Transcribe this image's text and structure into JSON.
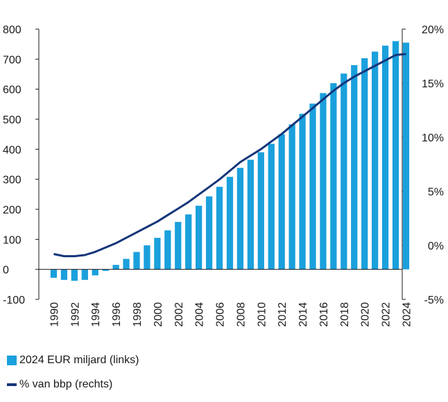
{
  "colors": {
    "bar": "#1aa0dc",
    "line": "#14357a",
    "axis": "#1a1a1a"
  },
  "chart_data": {
    "type": "bar+line",
    "title": "",
    "grid": false,
    "x": [
      1990,
      1991,
      1992,
      1993,
      1994,
      1995,
      1996,
      1997,
      1998,
      1999,
      2000,
      2001,
      2002,
      2003,
      2004,
      2005,
      2006,
      2007,
      2008,
      2009,
      2010,
      2011,
      2012,
      2013,
      2014,
      2015,
      2016,
      2017,
      2018,
      2019,
      2020,
      2021,
      2022,
      2023,
      2024
    ],
    "x_tick_labels": [
      "1990",
      "1992",
      "1994",
      "1996",
      "1998",
      "2000",
      "2002",
      "2004",
      "2006",
      "2008",
      "2010",
      "2012",
      "2014",
      "2016",
      "2018",
      "2020",
      "2022",
      "2024"
    ],
    "y_left": {
      "ylim": [
        -100,
        800
      ],
      "ticks": [
        "-100",
        "0",
        "100",
        "200",
        "300",
        "400",
        "500",
        "600",
        "700",
        "800"
      ]
    },
    "y_right": {
      "ylim": [
        -5,
        20
      ],
      "ticks": [
        "-5%",
        "0%",
        "5%",
        "10%",
        "15%",
        "20%"
      ]
    },
    "series": [
      {
        "name": "2024 EUR miljard (links)",
        "type": "bar",
        "axis": "left",
        "values": [
          -28,
          -35,
          -38,
          -35,
          -20,
          -5,
          15,
          35,
          58,
          80,
          105,
          130,
          158,
          183,
          212,
          243,
          275,
          308,
          338,
          365,
          390,
          418,
          450,
          483,
          518,
          552,
          587,
          620,
          652,
          680,
          703,
          725,
          745,
          760,
          755
        ]
      },
      {
        "name": "% van bbp (rechts)",
        "type": "line",
        "axis": "right",
        "values": [
          -0.8,
          -1.0,
          -1.0,
          -0.9,
          -0.6,
          -0.2,
          0.2,
          0.7,
          1.2,
          1.7,
          2.2,
          2.8,
          3.4,
          4.0,
          4.7,
          5.4,
          6.1,
          6.9,
          7.7,
          8.3,
          8.9,
          9.6,
          10.3,
          11.1,
          11.9,
          12.7,
          13.5,
          14.3,
          15.0,
          15.6,
          16.1,
          16.6,
          17.1,
          17.6,
          17.7
        ]
      }
    ],
    "legend": "bottom-left"
  }
}
